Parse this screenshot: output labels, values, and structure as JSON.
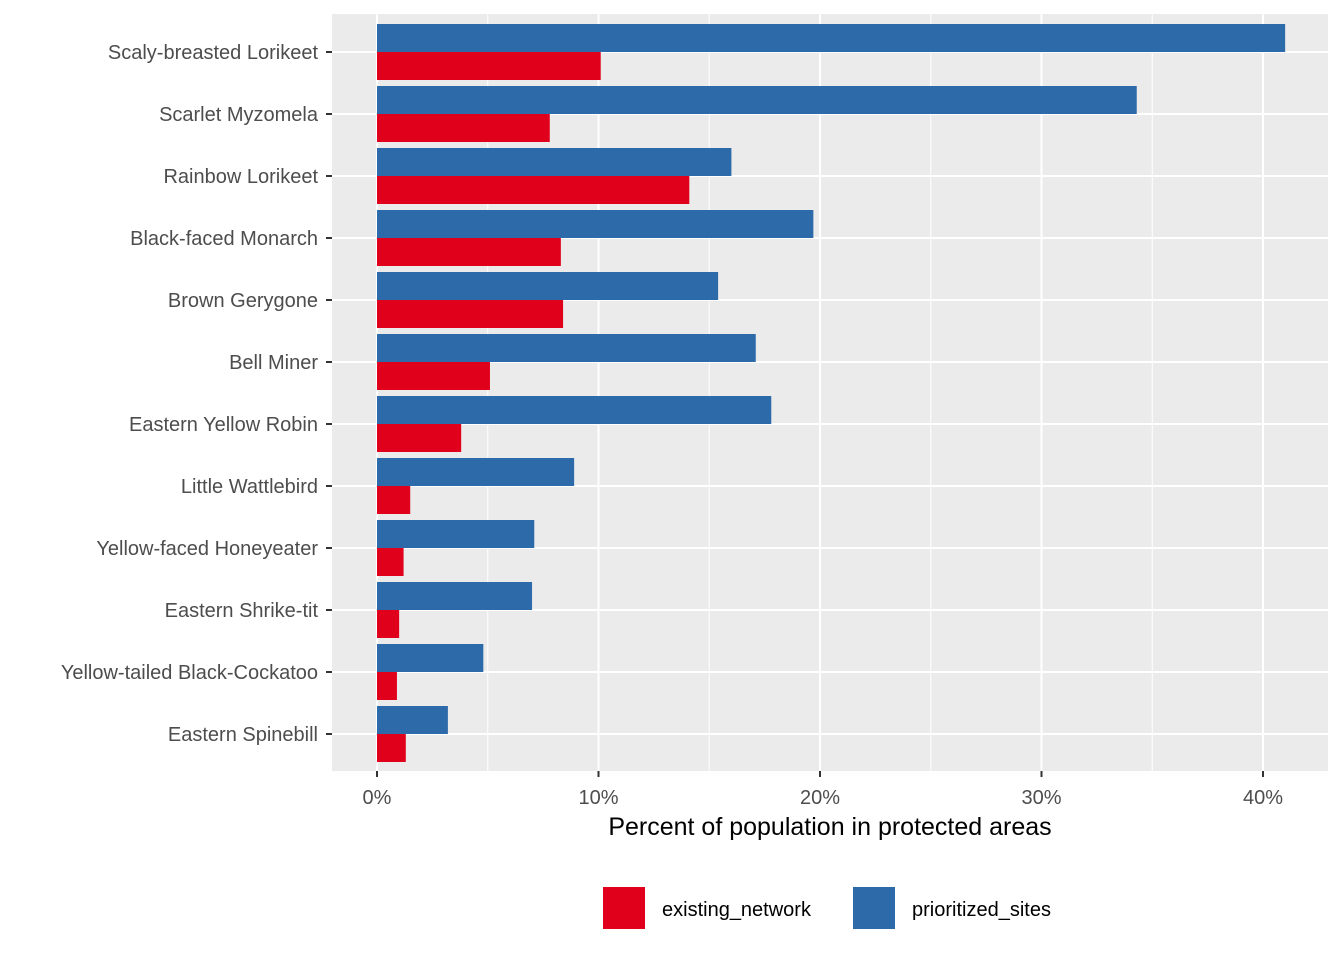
{
  "chart_data": {
    "type": "bar",
    "orientation": "horizontal",
    "title": "",
    "xlabel": "Percent of population in protected areas",
    "ylabel": "",
    "xlim": [
      -2,
      41
    ],
    "xticks": [
      0,
      10,
      20,
      30,
      40
    ],
    "xtick_labels": [
      "0%",
      "10%",
      "20%",
      "30%",
      "40%"
    ],
    "grid": true,
    "legend_position": "bottom",
    "categories": [
      "Scaly-breasted Lorikeet",
      "Scarlet Myzomela",
      "Rainbow Lorikeet",
      "Black-faced Monarch",
      "Brown Gerygone",
      "Bell Miner",
      "Eastern Yellow Robin",
      "Little Wattlebird",
      "Yellow-faced Honeyeater",
      "Eastern Shrike-tit",
      "Yellow-tailed Black-Cockatoo",
      "Eastern Spinebill"
    ],
    "series": [
      {
        "name": "existing_network",
        "color": "#e0001b",
        "values": [
          10.1,
          7.8,
          14.1,
          8.3,
          8.4,
          5.1,
          3.8,
          1.5,
          1.2,
          1.0,
          0.9,
          1.3
        ]
      },
      {
        "name": "prioritized_sites",
        "color": "#2d6aa9",
        "values": [
          41.0,
          34.3,
          16.0,
          19.7,
          15.4,
          17.1,
          17.8,
          8.9,
          7.1,
          7.0,
          4.8,
          3.2
        ]
      }
    ]
  }
}
